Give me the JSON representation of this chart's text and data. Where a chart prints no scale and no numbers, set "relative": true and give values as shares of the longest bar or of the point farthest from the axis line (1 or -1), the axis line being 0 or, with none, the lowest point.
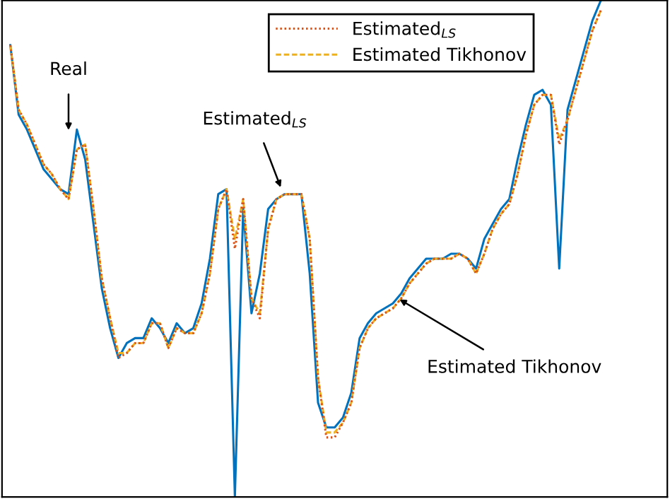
{
  "chart_data": {
    "type": "line",
    "relative": true,
    "legend": "top",
    "grid": false,
    "categories": [
      null,
      null,
      null,
      null,
      null,
      null,
      null,
      null,
      null,
      null,
      null,
      null,
      null,
      null,
      null,
      null,
      null,
      null,
      null,
      null,
      null,
      null,
      null,
      null,
      null,
      null,
      null,
      null,
      null,
      null,
      null,
      null,
      null,
      null,
      null,
      null,
      null,
      null,
      null,
      null,
      null,
      null,
      null,
      null,
      null,
      null,
      null,
      null,
      null,
      null,
      null,
      null,
      null,
      null,
      null,
      null,
      null,
      null,
      null,
      null,
      null,
      null,
      null,
      null,
      null,
      null,
      null,
      null,
      null,
      null,
      null,
      null
    ],
    "annotations": [
      "Real",
      "Estimated$_{LS}$",
      "Estimated Tikhonov"
    ],
    "series": [
      {
        "color": "#0072bd",
        "line_style": "solid",
        "values": [
          0.91,
          0.77,
          0.74,
          0.7,
          0.66,
          0.64,
          0.62,
          0.61,
          0.74,
          0.68,
          0.55,
          0.42,
          0.34,
          0.28,
          0.31,
          0.32,
          0.32,
          0.36,
          0.34,
          0.31,
          0.35,
          0.33,
          0.34,
          0.39,
          0.48,
          0.61,
          0.62,
          0,
          0.58,
          0.37,
          0.45,
          0.58,
          0.6,
          0.61,
          0.61,
          0.61,
          0.45,
          0.19,
          0.14,
          0.14,
          0.16,
          0.21,
          0.32,
          0.35,
          0.37,
          0.38,
          0.39,
          0.41,
          0.44,
          0.46,
          0.48,
          0.48,
          0.48,
          0.49,
          0.49,
          0.48,
          0.46,
          0.52,
          0.55,
          0.58,
          0.6,
          0.68,
          0.75,
          0.81,
          0.82,
          0.79,
          0.46,
          0.78,
          0.84,
          0.9,
          0.96,
          1.0
        ]
      },
      {
        "name": "Estimated$_{LS}$",
        "color": "#d95319",
        "line_style": "dotted",
        "values": [
          0.91,
          0.78,
          0.75,
          0.71,
          0.67,
          0.65,
          0.62,
          0.6,
          0.7,
          0.71,
          0.58,
          0.44,
          0.36,
          0.28,
          0.29,
          0.31,
          0.31,
          0.35,
          0.35,
          0.3,
          0.34,
          0.33,
          0.33,
          0.37,
          0.45,
          0.58,
          0.62,
          0.5,
          0.6,
          0.4,
          0.36,
          0.54,
          0.6,
          0.61,
          0.61,
          0.61,
          0.52,
          0.24,
          0.12,
          0.12,
          0.15,
          0.19,
          0.3,
          0.34,
          0.36,
          0.37,
          0.38,
          0.4,
          0.43,
          0.45,
          0.47,
          0.48,
          0.48,
          0.48,
          0.49,
          0.48,
          0.45,
          0.49,
          0.54,
          0.57,
          0.59,
          0.65,
          0.73,
          0.79,
          0.81,
          0.81,
          0.71,
          0.76,
          0.82,
          0.88,
          0.94,
          0.98
        ]
      },
      {
        "name": "Estimated Tikhonov",
        "color": "#edb120",
        "line_style": "dashed",
        "values": [
          0.91,
          0.78,
          0.75,
          0.71,
          0.67,
          0.65,
          0.62,
          0.6,
          0.7,
          0.71,
          0.58,
          0.44,
          0.36,
          0.29,
          0.29,
          0.31,
          0.31,
          0.35,
          0.35,
          0.3,
          0.34,
          0.33,
          0.33,
          0.37,
          0.45,
          0.58,
          0.62,
          0.52,
          0.6,
          0.4,
          0.37,
          0.54,
          0.6,
          0.61,
          0.61,
          0.61,
          0.52,
          0.24,
          0.13,
          0.13,
          0.15,
          0.19,
          0.3,
          0.34,
          0.36,
          0.37,
          0.38,
          0.4,
          0.43,
          0.45,
          0.47,
          0.48,
          0.48,
          0.48,
          0.49,
          0.48,
          0.45,
          0.49,
          0.54,
          0.57,
          0.59,
          0.65,
          0.73,
          0.79,
          0.81,
          0.81,
          0.72,
          0.76,
          0.82,
          0.88,
          0.94,
          0.98
        ]
      }
    ]
  }
}
